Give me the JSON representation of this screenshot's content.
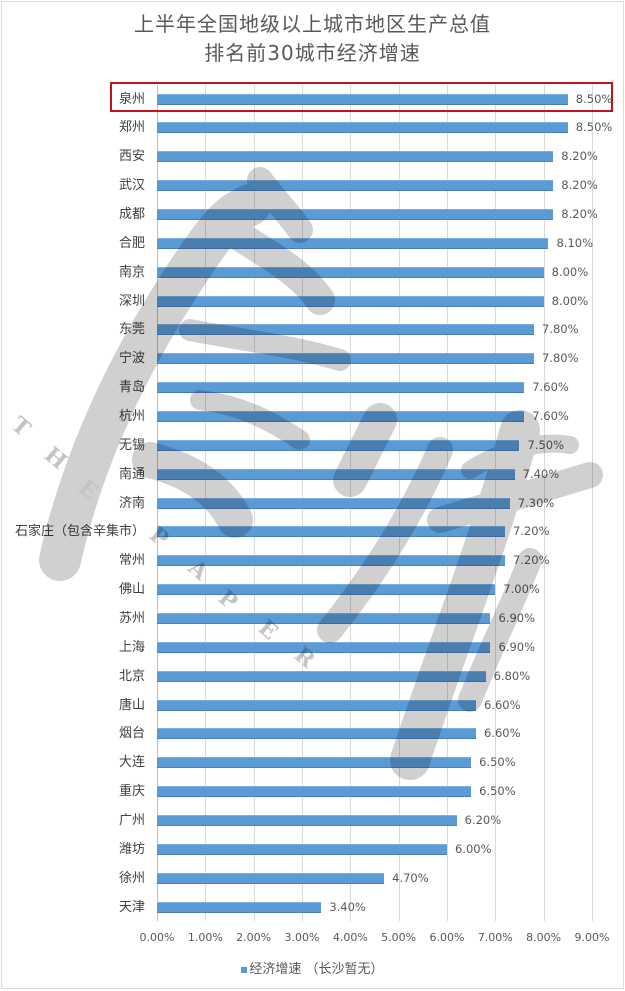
{
  "title": {
    "line1": "上半年全国地级以上城市地区生产总值",
    "line2": "排名前30城市经济增速"
  },
  "chart_data": {
    "type": "bar",
    "orientation": "horizontal",
    "title": "上半年全国地级以上城市地区生产总值 排名前30城市经济增速",
    "xlabel": "",
    "ylabel": "",
    "xlim": [
      0,
      9
    ],
    "x_ticks": [
      "0.00%",
      "1.00%",
      "2.00%",
      "3.00%",
      "4.00%",
      "5.00%",
      "6.00%",
      "7.00%",
      "8.00%",
      "9.00%"
    ],
    "grid": true,
    "legend": {
      "label": "经济增速 （长沙暂无）",
      "position": "bottom"
    },
    "categories": [
      "泉州",
      "郑州",
      "西安",
      "武汉",
      "成都",
      "合肥",
      "南京",
      "深圳",
      "东莞",
      "宁波",
      "青岛",
      "杭州",
      "无锡",
      "南通",
      "济南",
      "石家庄（包含辛集市）",
      "常州",
      "佛山",
      "苏州",
      "上海",
      "北京",
      "唐山",
      "烟台",
      "大连",
      "重庆",
      "广州",
      "潍坊",
      "徐州",
      "天津"
    ],
    "values": [
      8.5,
      8.5,
      8.2,
      8.2,
      8.2,
      8.1,
      8.0,
      8.0,
      7.8,
      7.8,
      7.6,
      7.6,
      7.5,
      7.4,
      7.3,
      7.2,
      7.2,
      7.0,
      6.9,
      6.9,
      6.8,
      6.6,
      6.6,
      6.5,
      6.5,
      6.2,
      6.0,
      4.7,
      3.4
    ],
    "value_labels": [
      "8.50%",
      "8.50%",
      "8.20%",
      "8.20%",
      "8.20%",
      "8.10%",
      "8.00%",
      "8.00%",
      "7.80%",
      "7.80%",
      "7.60%",
      "7.60%",
      "7.50%",
      "7.40%",
      "7.30%",
      "7.20%",
      "7.20%",
      "7.00%",
      "6.90%",
      "6.90%",
      "6.80%",
      "6.60%",
      "6.60%",
      "6.50%",
      "6.50%",
      "6.20%",
      "6.00%",
      "4.70%",
      "3.40%"
    ],
    "series": [
      {
        "name": "经济增速 （长沙暂无）",
        "values": [
          8.5,
          8.5,
          8.2,
          8.2,
          8.2,
          8.1,
          8.0,
          8.0,
          7.8,
          7.8,
          7.6,
          7.6,
          7.5,
          7.4,
          7.3,
          7.2,
          7.2,
          7.0,
          6.9,
          6.9,
          6.8,
          6.6,
          6.6,
          6.5,
          6.5,
          6.2,
          6.0,
          4.7,
          3.4
        ]
      }
    ],
    "highlight": {
      "category": "泉州",
      "style": "red-outline-box"
    }
  },
  "colors": {
    "bar": "#5b9bd5",
    "highlight_box": "#c0121f",
    "grid": "#d9d9d9",
    "text": "#595959"
  },
  "watermark": {
    "letters": [
      "T",
      "H",
      "E",
      "P",
      "A",
      "P",
      "E",
      "R"
    ]
  }
}
